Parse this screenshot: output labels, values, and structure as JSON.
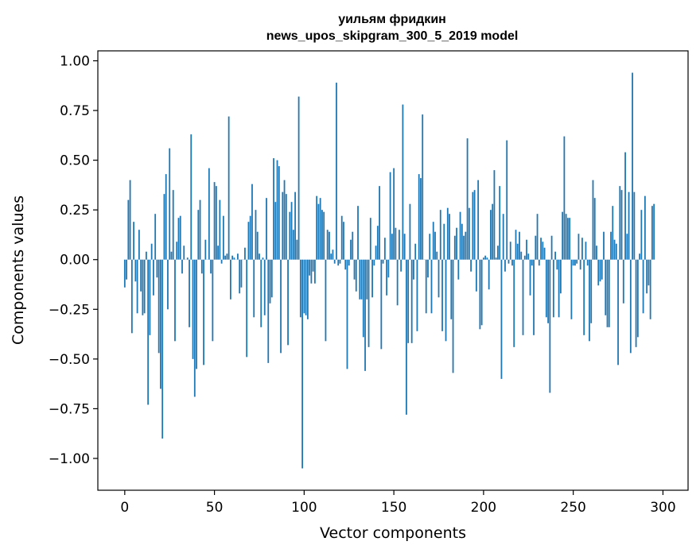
{
  "chart_data": {
    "type": "bar",
    "title_line1": "уильям фридкин",
    "title_line2": "news_upos_skipgram_300_5_2019 model",
    "xlabel": "Vector components",
    "ylabel": "Components values",
    "xlim": [
      -15,
      314
    ],
    "ylim": [
      -1.16,
      1.05
    ],
    "xticks": [
      0,
      50,
      100,
      150,
      200,
      250,
      300
    ],
    "yticks": [
      1.0,
      0.75,
      0.5,
      0.25,
      0.0,
      -0.25,
      -0.5,
      -0.75,
      -1.0
    ],
    "ytick_labels": [
      "1.00",
      "0.75",
      "0.50",
      "0.25",
      "0.00",
      "−0.25",
      "−0.50",
      "−0.75",
      "−1.00"
    ],
    "bar_color": "#1f77b4",
    "values": [
      -0.14,
      -0.1,
      0.3,
      0.4,
      -0.37,
      0.19,
      -0.11,
      -0.27,
      0.15,
      -0.16,
      -0.28,
      -0.27,
      0.04,
      -0.73,
      -0.38,
      0.08,
      -0.18,
      0.23,
      -0.09,
      -0.47,
      -0.65,
      -0.9,
      0.33,
      0.43,
      -0.25,
      0.56,
      0.04,
      0.35,
      -0.41,
      0.09,
      0.21,
      0.22,
      -0.07,
      0.07,
      0.0,
      0.01,
      -0.34,
      0.63,
      -0.5,
      -0.69,
      -0.55,
      0.25,
      0.3,
      -0.07,
      -0.53,
      0.1,
      0.0,
      0.46,
      -0.07,
      -0.41,
      0.39,
      0.37,
      0.07,
      0.3,
      -0.02,
      0.22,
      0.02,
      0.03,
      0.72,
      -0.2,
      0.02,
      0.01,
      0.0,
      0.03,
      -0.17,
      -0.14,
      0.0,
      0.06,
      -0.49,
      0.19,
      0.22,
      0.38,
      -0.29,
      0.25,
      0.14,
      0.03,
      -0.34,
      0.01,
      -0.28,
      0.31,
      -0.52,
      -0.22,
      -0.19,
      0.51,
      0.29,
      0.5,
      0.47,
      -0.47,
      0.34,
      0.4,
      0.33,
      -0.43,
      0.24,
      0.29,
      0.15,
      0.34,
      0.1,
      0.82,
      -0.29,
      -1.05,
      -0.27,
      -0.28,
      -0.3,
      -0.08,
      -0.12,
      -0.06,
      -0.12,
      0.32,
      0.28,
      0.31,
      0.25,
      0.24,
      -0.41,
      0.15,
      0.14,
      0.03,
      0.05,
      -0.02,
      0.89,
      -0.03,
      -0.02,
      0.22,
      0.19,
      -0.05,
      -0.55,
      -0.03,
      0.1,
      0.14,
      -0.1,
      -0.16,
      0.27,
      -0.2,
      -0.2,
      -0.39,
      -0.56,
      -0.2,
      -0.44,
      0.21,
      -0.19,
      -0.03,
      0.07,
      0.17,
      0.37,
      -0.45,
      -0.02,
      0.11,
      -0.18,
      -0.09,
      0.44,
      0.13,
      0.46,
      0.16,
      -0.23,
      0.15,
      -0.06,
      0.78,
      0.13,
      -0.78,
      -0.42,
      0.28,
      -0.42,
      -0.1,
      0.08,
      -0.36,
      0.43,
      0.41,
      0.73,
      0.0,
      -0.27,
      -0.09,
      0.13,
      -0.27,
      0.19,
      0.14,
      0.04,
      -0.19,
      0.25,
      -0.36,
      0.18,
      -0.41,
      0.26,
      0.23,
      -0.3,
      -0.57,
      0.12,
      0.16,
      -0.1,
      0.24,
      0.18,
      0.12,
      0.14,
      0.61,
      0.26,
      -0.06,
      0.34,
      0.35,
      -0.16,
      0.4,
      -0.35,
      -0.33,
      0.01,
      0.02,
      0.01,
      -0.15,
      0.25,
      0.28,
      0.45,
      0.01,
      0.07,
      0.37,
      -0.6,
      0.23,
      -0.06,
      0.6,
      -0.02,
      0.09,
      -0.03,
      -0.44,
      0.15,
      0.08,
      0.14,
      0.04,
      -0.38,
      0.02,
      0.1,
      0.03,
      -0.18,
      -0.03,
      -0.38,
      0.12,
      0.23,
      -0.03,
      0.11,
      0.09,
      0.06,
      -0.29,
      -0.32,
      -0.67,
      0.12,
      -0.29,
      0.04,
      -0.05,
      -0.29,
      -0.17,
      0.24,
      0.62,
      0.23,
      0.21,
      0.21,
      -0.3,
      -0.03,
      -0.03,
      -0.02,
      0.13,
      -0.05,
      0.11,
      -0.38,
      0.09,
      -0.03,
      -0.41,
      -0.32,
      0.4,
      0.31,
      0.07,
      -0.13,
      -0.11,
      -0.1,
      0.14,
      -0.28,
      -0.34,
      -0.34,
      0.14,
      0.27,
      0.1,
      0.08,
      -0.53,
      0.37,
      0.35,
      -0.22,
      0.54,
      0.13,
      0.34,
      -0.47,
      0.94,
      0.34,
      -0.44,
      -0.39,
      0.03,
      0.25,
      -0.27,
      0.32,
      -0.17,
      -0.13,
      -0.3,
      0.27,
      0.28
    ]
  }
}
